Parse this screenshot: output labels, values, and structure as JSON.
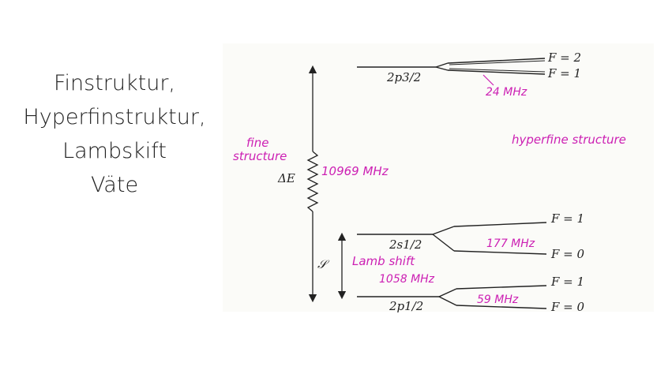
{
  "slide": {
    "title_lines": [
      "Finstruktur,",
      "Hyperfinstruktur,",
      "Lambskift",
      "Väte"
    ]
  },
  "diagram": {
    "levels": {
      "p32": "2p3/2",
      "s12": "2s1/2",
      "p12": "2p1/2"
    },
    "f_labels": {
      "p32_upper": "F = 2",
      "p32_lower": "F = 1",
      "s12_upper": "F = 1",
      "s12_lower": "F = 0",
      "p12_upper": "F = 1",
      "p12_lower": "F = 0"
    },
    "delta_e": "ΔE",
    "lamb_symbol": "𝒮",
    "annotations": {
      "fine_line1": "fine",
      "fine_line2": "structure",
      "fine_value": "10969 MHz",
      "hfs_p32": "24 MHz",
      "hfs_title": "hyperfine structure",
      "hfs_s12": "177 MHz",
      "lamb_line1": "Lamb shift",
      "lamb_line2": "1058 MHz",
      "hfs_p12": "59 MHz"
    },
    "colors": {
      "ink": "#222222",
      "handwriting": "#cc1fb3",
      "paper": "#fbfbf8"
    }
  }
}
